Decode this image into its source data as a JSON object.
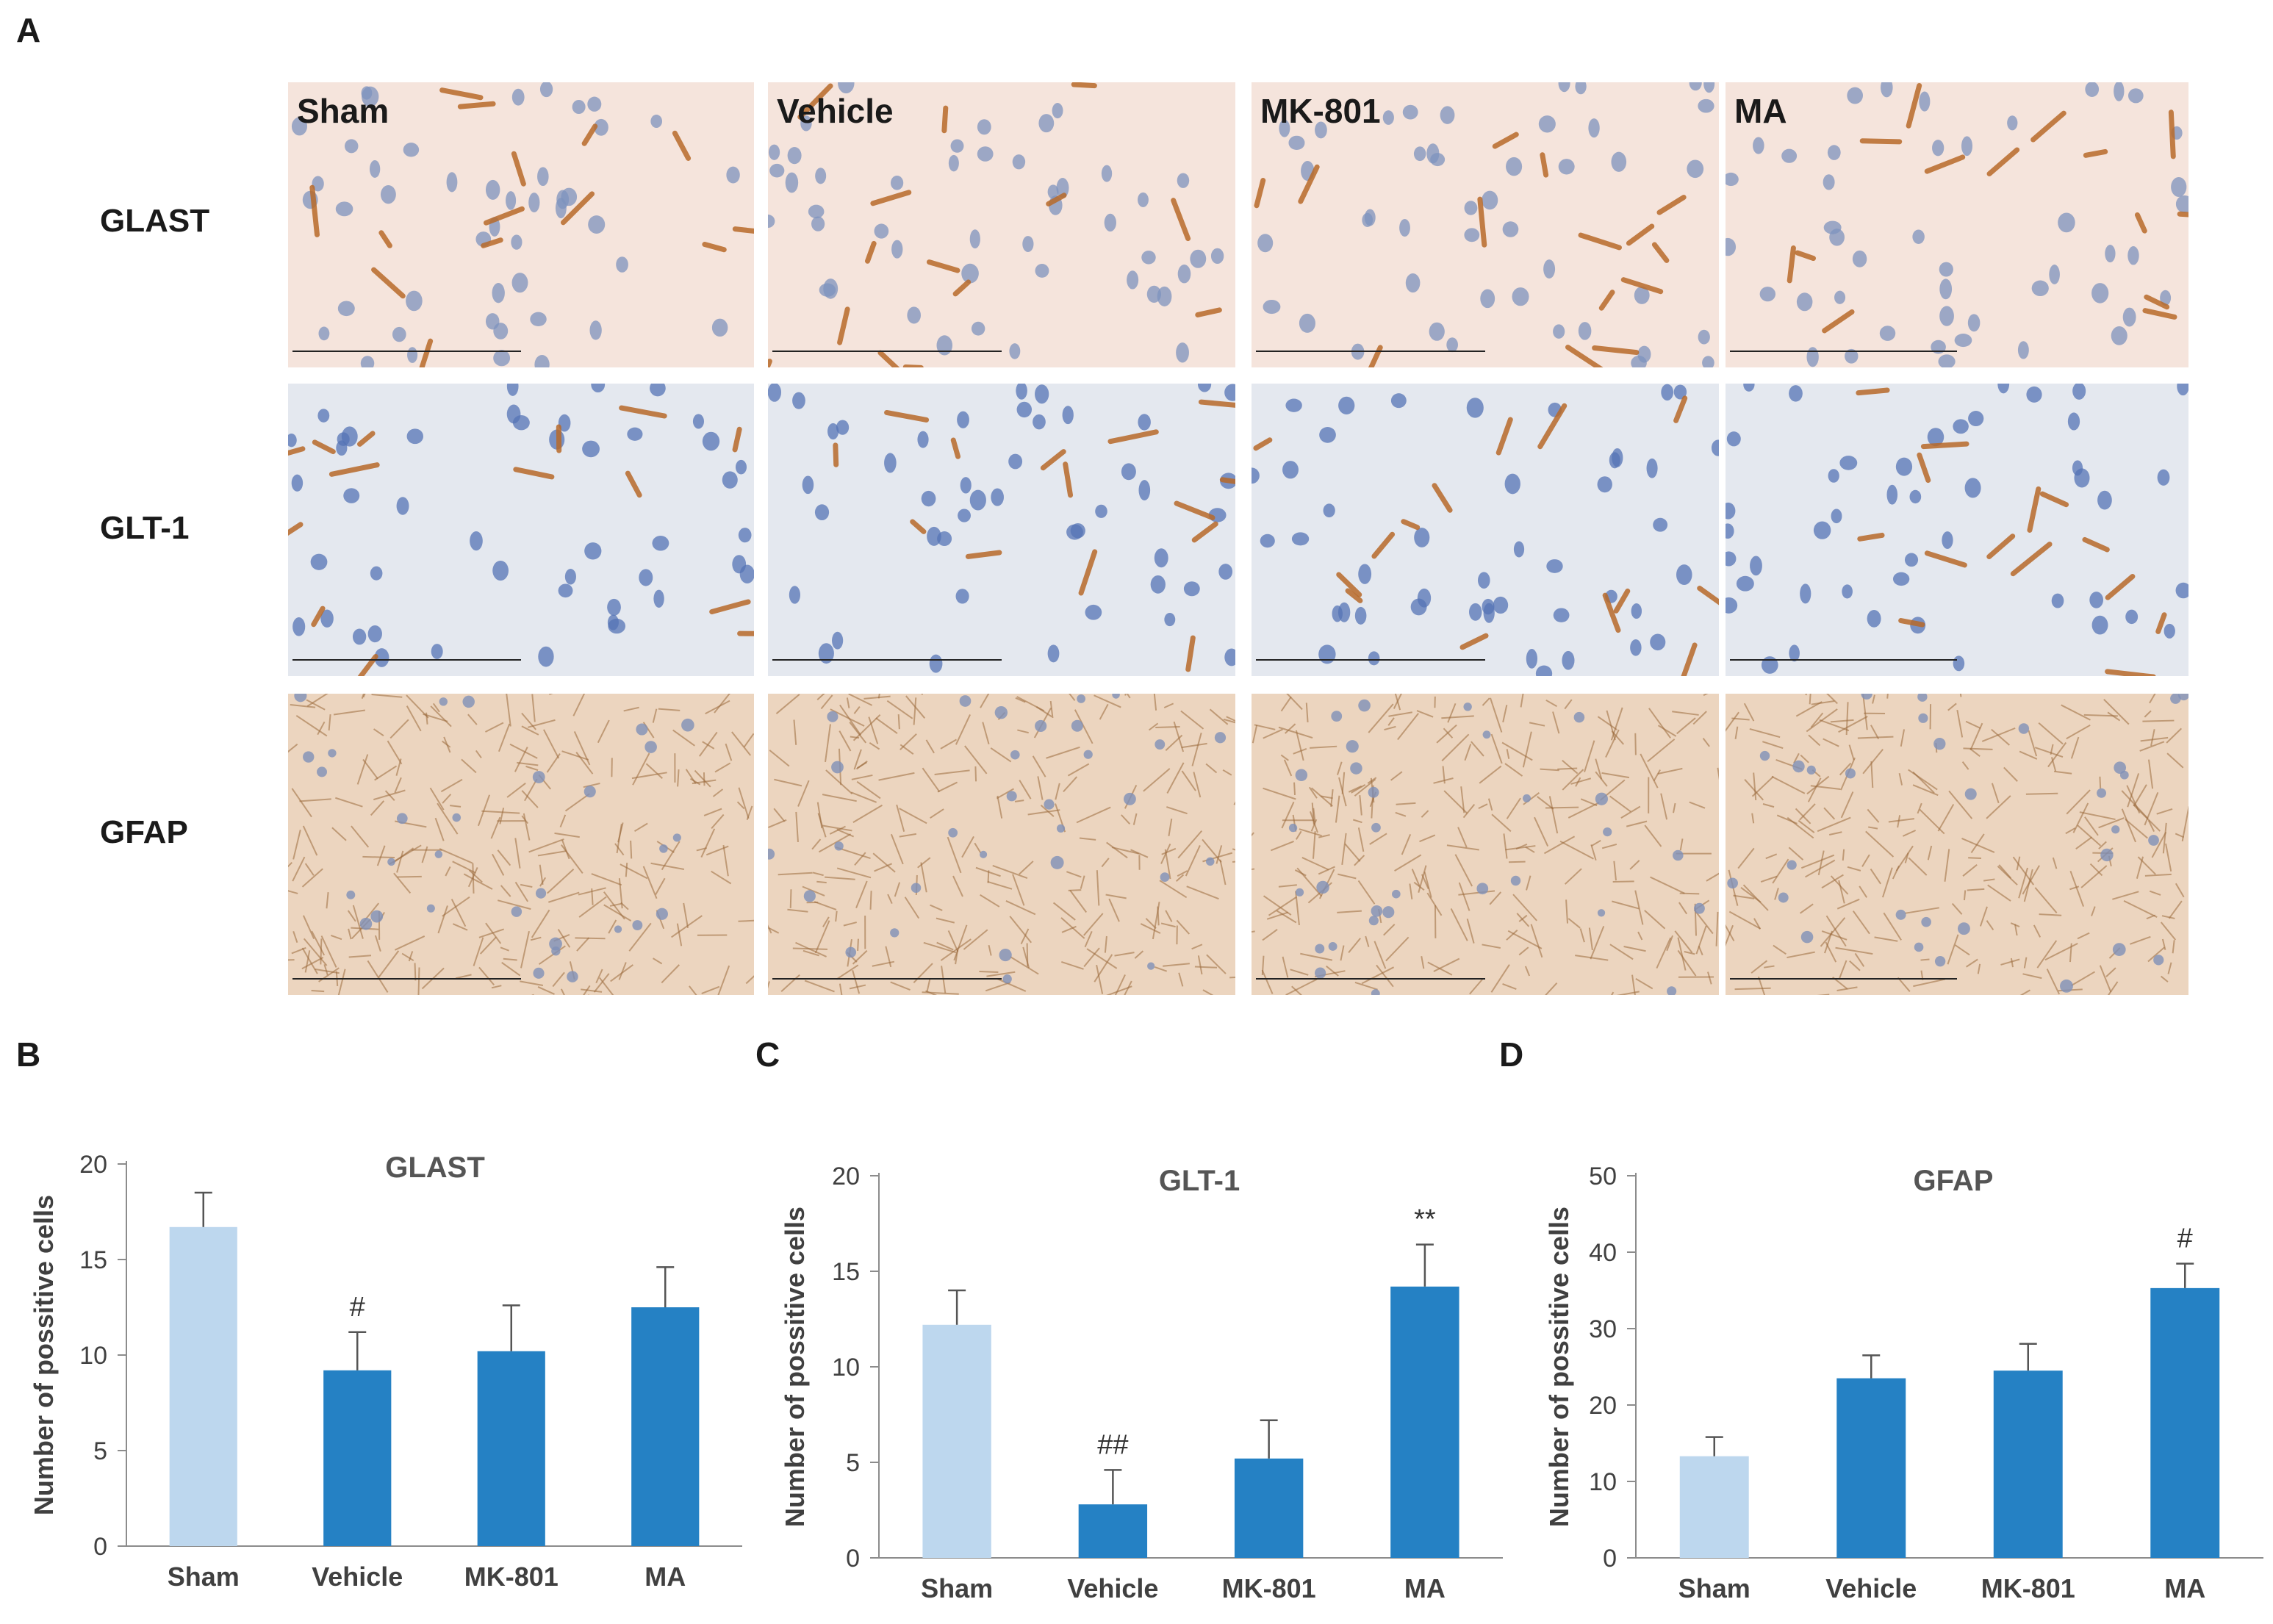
{
  "panels": {
    "a": "A",
    "b": "B",
    "c": "C",
    "d": "D"
  },
  "stain_rows": [
    "GLAST",
    "GLT-1",
    "GFAP"
  ],
  "stain_groups": [
    "Sham",
    "Vehicle",
    "MK-801",
    "MA"
  ],
  "tile_colors": {
    "GLAST": "#f5e4dc",
    "GLT-1": "#e4e8ef",
    "GFAP": "#ecd5bf"
  },
  "chart_data": [
    {
      "type": "bar",
      "title": "GLAST",
      "ylabel": "Number of possitive cells",
      "xlabel": "",
      "categories": [
        "Sham",
        "Vehicle",
        "MK-801",
        "MA"
      ],
      "values": [
        16.7,
        9.2,
        10.2,
        12.5
      ],
      "errors": [
        1.8,
        2.0,
        2.4,
        2.1
      ],
      "annotations": [
        "",
        "#",
        "",
        ""
      ],
      "ylim": [
        0,
        20
      ],
      "yticks": [
        0,
        5,
        10,
        15,
        20
      ],
      "colors": [
        "#bdd7ee",
        "#2581c4",
        "#2581c4",
        "#2581c4"
      ],
      "grid": false
    },
    {
      "type": "bar",
      "title": "GLT-1",
      "ylabel": "Number of possitive cells",
      "xlabel": "",
      "categories": [
        "Sham",
        "Vehicle",
        "MK-801",
        "MA"
      ],
      "values": [
        12.2,
        2.8,
        5.2,
        14.2
      ],
      "errors": [
        1.8,
        1.8,
        2.0,
        2.2
      ],
      "annotations": [
        "",
        "##",
        "",
        "**"
      ],
      "ylim": [
        0,
        20
      ],
      "yticks": [
        0,
        5,
        10,
        15,
        20
      ],
      "colors": [
        "#bdd7ee",
        "#2581c4",
        "#2581c4",
        "#2581c4"
      ],
      "grid": false
    },
    {
      "type": "bar",
      "title": "GFAP",
      "ylabel": "Number of possitive cells",
      "xlabel": "",
      "categories": [
        "Sham",
        "Vehicle",
        "MK-801",
        "MA"
      ],
      "values": [
        13.3,
        23.5,
        24.5,
        35.3
      ],
      "errors": [
        2.5,
        3.0,
        3.5,
        3.2
      ],
      "annotations": [
        "",
        "",
        "",
        "#"
      ],
      "ylim": [
        0,
        50
      ],
      "yticks": [
        0,
        10,
        20,
        30,
        40,
        50
      ],
      "colors": [
        "#bdd7ee",
        "#2581c4",
        "#2581c4",
        "#2581c4"
      ],
      "grid": false
    }
  ]
}
